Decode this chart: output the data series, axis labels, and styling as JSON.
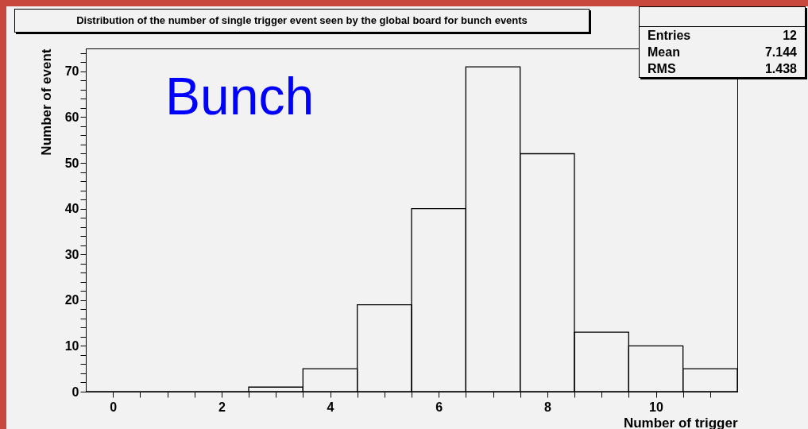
{
  "chart_data": {
    "type": "histogram",
    "title": "Distribution of the number of single trigger event seen by the global board for bunch events",
    "xlabel": "Number of trigger",
    "ylabel": "Number of event",
    "bins": [
      -0.5,
      0.5,
      1.5,
      2.5,
      3.5,
      4.5,
      5.5,
      6.5,
      7.5,
      8.5,
      9.5,
      10.5,
      11.5
    ],
    "values": [
      0,
      0,
      0,
      1,
      5,
      19,
      40,
      71,
      52,
      13,
      10,
      5
    ],
    "color": "#000000",
    "xlim": [
      -0.5,
      11.5
    ],
    "xticks": [
      0,
      {
        "value": 0.5,
        "label": null
      },
      {
        "value": 1,
        "label": null
      },
      {
        "value": 1.5,
        "label": null
      },
      2,
      {
        "value": 2.5,
        "label": null
      },
      {
        "value": 3,
        "label": null
      },
      {
        "value": 3.5,
        "label": null
      },
      4,
      {
        "value": 4.5,
        "label": null
      },
      {
        "value": 5,
        "label": null
      },
      {
        "value": 5.5,
        "label": null
      },
      6,
      {
        "value": 6.5,
        "label": null
      },
      {
        "value": 7,
        "label": null
      },
      {
        "value": 7.5,
        "label": null
      },
      8,
      {
        "value": 8.5,
        "label": null
      },
      {
        "value": 9,
        "label": null
      },
      {
        "value": 9.5,
        "label": null
      },
      10,
      {
        "value": 10.5,
        "label": null
      },
      {
        "value": 11,
        "label": null
      }
    ],
    "ylim": [
      0,
      75
    ],
    "yticks": [
      0,
      {
        "value": 2,
        "label": null
      },
      {
        "value": 4,
        "label": null
      },
      {
        "value": 6,
        "label": null
      },
      {
        "value": 8,
        "label": null
      },
      10,
      {
        "value": 12,
        "label": null
      },
      {
        "value": 14,
        "label": null
      },
      {
        "value": 16,
        "label": null
      },
      {
        "value": 18,
        "label": null
      },
      20,
      {
        "value": 22,
        "label": null
      },
      {
        "value": 24,
        "label": null
      },
      {
        "value": 26,
        "label": null
      },
      {
        "value": 28,
        "label": null
      },
      30,
      {
        "value": 32,
        "label": null
      },
      {
        "value": 34,
        "label": null
      },
      {
        "value": 36,
        "label": null
      },
      {
        "value": 38,
        "label": null
      },
      40,
      {
        "value": 42,
        "label": null
      },
      {
        "value": 44,
        "label": null
      },
      {
        "value": 46,
        "label": null
      },
      {
        "value": 48,
        "label": null
      },
      50,
      {
        "value": 52,
        "label": null
      },
      {
        "value": 54,
        "label": null
      },
      {
        "value": 56,
        "label": null
      },
      {
        "value": 58,
        "label": null
      },
      60,
      {
        "value": 62,
        "label": null
      },
      {
        "value": 64,
        "label": null
      },
      {
        "value": 66,
        "label": null
      },
      {
        "value": 68,
        "label": null
      },
      70,
      {
        "value": 72,
        "label": null
      },
      {
        "value": 74,
        "label": null
      }
    ],
    "annotations": [
      "Bunch",
      "Entries",
      "12",
      "Mean",
      "7.144",
      "RMS",
      "1.438"
    ]
  }
}
